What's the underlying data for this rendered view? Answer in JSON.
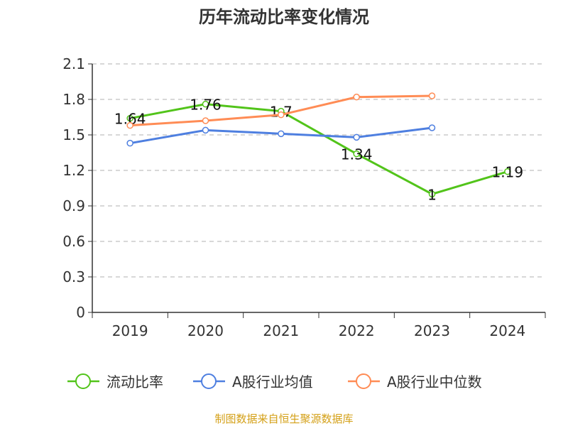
{
  "chart_data": {
    "type": "line",
    "title": "历年流动比率变化情况",
    "categories": [
      "2019",
      "2020",
      "2021",
      "2022",
      "2023",
      "2024"
    ],
    "ylim": [
      0,
      2.1
    ],
    "yticks": [
      "0",
      "0.3",
      "0.6",
      "0.9",
      "1.2",
      "1.5",
      "1.8",
      "2.1"
    ],
    "grid": true,
    "legend_position": "bottom",
    "series": [
      {
        "name": "流动比率",
        "color": "#52c41a",
        "values": [
          1.64,
          1.76,
          1.7,
          1.34,
          1,
          1.19
        ],
        "labels": [
          "1.64",
          "1.76",
          "1.7",
          "1.34",
          "1",
          "1.19"
        ]
      },
      {
        "name": "A股行业均值",
        "color": "#4e7fe0",
        "values": [
          1.43,
          1.54,
          1.51,
          1.48,
          1.56,
          null
        ]
      },
      {
        "name": "A股行业中位数",
        "color": "#ff8c55",
        "values": [
          1.58,
          1.62,
          1.67,
          1.82,
          1.83,
          null
        ]
      }
    ]
  },
  "source": "制图数据来自恒生聚源数据库"
}
